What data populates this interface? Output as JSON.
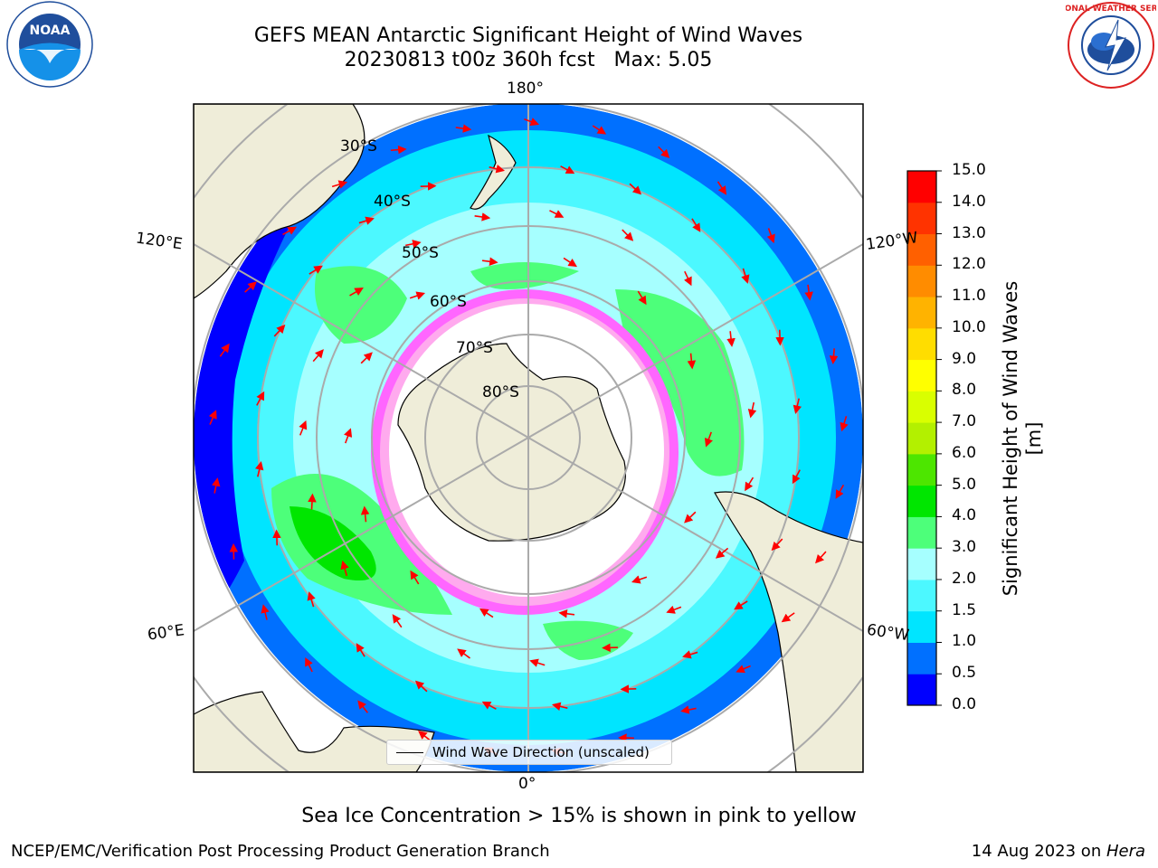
{
  "header": {
    "title_line1": "GEFS MEAN Antarctic Significant Height of Wind Waves",
    "title_line2": "20230813 t00z 360h fcst   Max: 5.05"
  },
  "logos": {
    "left": "NOAA",
    "right_text": "NATIONAL WEATHER SERVICE"
  },
  "map": {
    "projection": "south polar stereographic",
    "lon_labels": {
      "top": "180°",
      "bottom": "0°",
      "left_upper": "120°E",
      "left_lower": "60°E",
      "right_upper": "120°W",
      "right_lower": "60°W"
    },
    "lat_labels": [
      "30°S",
      "40°S",
      "50°S",
      "60°S",
      "70°S",
      "80°S"
    ],
    "legend_label": "Wind Wave Direction (unscaled)"
  },
  "colorbar": {
    "title": "Significant Height of Wind Waves [m]",
    "ticks": [
      "0.0",
      "0.5",
      "1.0",
      "1.5",
      "2.0",
      "3.0",
      "4.0",
      "5.0",
      "6.0",
      "7.0",
      "8.0",
      "9.0",
      "10.0",
      "11.0",
      "12.0",
      "13.0",
      "14.0",
      "15.0"
    ],
    "colors": [
      "#0000ff",
      "#0070ff",
      "#00e5ff",
      "#4cf8ff",
      "#a6ffff",
      "#4dff7a",
      "#00e600",
      "#4de600",
      "#b3f000",
      "#d9ff00",
      "#ffff00",
      "#ffdd00",
      "#ffb300",
      "#ff8c00",
      "#ff6000",
      "#ff3300",
      "#ff0000"
    ]
  },
  "caption": "Sea Ice Concentration > 15% is shown in pink to yellow",
  "footer": {
    "left": "NCEP/EMC/Verification Post Processing Product Generation Branch",
    "right_prefix": "14 Aug 2023 on ",
    "right_host": "Hera"
  }
}
